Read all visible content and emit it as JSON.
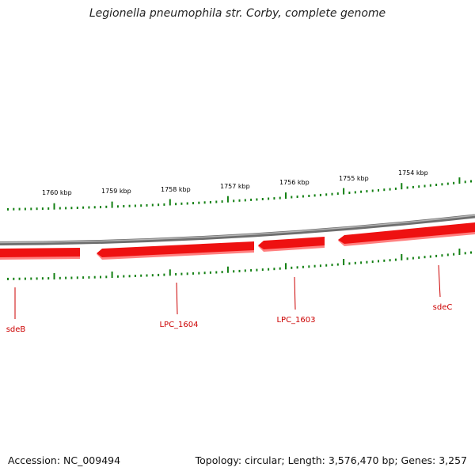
{
  "title": "Legionella pneumophila str. Corby, complete genome",
  "footer": {
    "accession": "Accession: NC_009494",
    "summary": "Topology: circular; Length: 3,576,470 bp; Genes: 3,257"
  },
  "colors": {
    "backbone": "#8a8a8a",
    "gene_fill": "#ee1111",
    "gene_shadow": "#ff7a7a",
    "tick": "#138013",
    "gene_label": "#cc0000",
    "kbp_label": "#000000"
  },
  "kbp_labels": [
    "1760 kbp",
    "1759 kbp",
    "1758 kbp",
    "1757 kbp",
    "1756 kbp",
    "1755 kbp",
    "1754 kbp"
  ],
  "genes": [
    {
      "label": "sdeB",
      "strand": "-"
    },
    {
      "label": "LPC_1604",
      "strand": "-"
    },
    {
      "label": "LPC_1603",
      "strand": "-"
    },
    {
      "label": "sdeC",
      "strand": "-"
    }
  ]
}
